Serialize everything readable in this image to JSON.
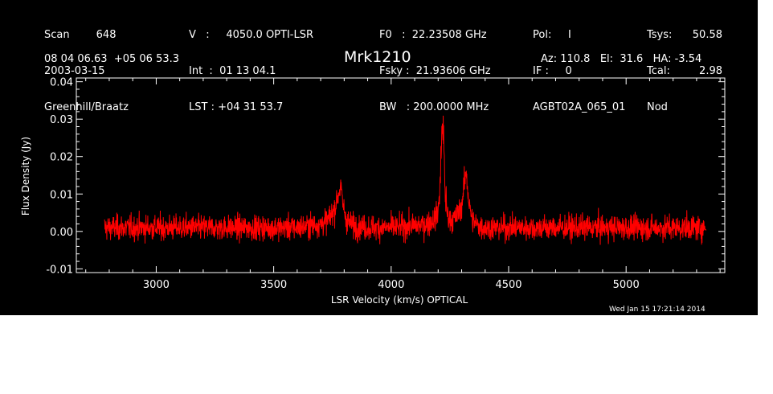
{
  "header": {
    "col1": [
      "Scan        648",
      "2003-03-15",
      "Greenhill/Braatz"
    ],
    "col2": [
      "V   :     4050.0 OPTI-LSR",
      "Int  :  01 13 04.1",
      "LST : +04 31 53.7"
    ],
    "col3": [
      "F0   :  22.23508 GHz",
      "Fsky :  21.93606 GHz",
      "BW   : 200.0000 MHz"
    ],
    "col4": [
      "Pol:     I",
      "IF :     0",
      "AGBT02A_065_01"
    ],
    "col5": [
      "Tsys:",
      "Tcal:",
      "Nod"
    ],
    "col6": [
      "50.58",
      "2.98",
      ""
    ],
    "coords": "08 04 06.63  +05 06 53.3",
    "source": "Mrk1210",
    "pointing": "Az: 110.8   El:  31.6   HA: -3.54"
  },
  "footer": {
    "timestamp": "Wed Jan 15 17:21:14 2014"
  },
  "colors": {
    "background": "#000000",
    "axes": "#ffffff",
    "trace": "#ff0000"
  },
  "chart_data": {
    "type": "line",
    "title": "Mrk1210",
    "xlabel": "LSR Velocity (km/s) OPTICAL",
    "ylabel": "Flux Density (Jy)",
    "xlim": [
      2660,
      5420
    ],
    "ylim": [
      -0.011,
      0.041
    ],
    "xticks": [
      3000,
      3500,
      4000,
      4500,
      5000
    ],
    "yticks": [
      -0.01,
      0.0,
      0.01,
      0.02,
      0.03,
      0.04
    ],
    "ytick_labels": [
      "-0.01",
      "0.00",
      "0.01",
      "0.02",
      "0.03",
      "0.04"
    ],
    "grid": false,
    "noise_rms": 0.0033,
    "series": [
      {
        "x": [
          2780,
          2900,
          3000,
          3100,
          3200,
          3300,
          3400,
          3500,
          3600,
          3650,
          3700,
          3730,
          3760,
          3775,
          3785,
          3795,
          3810,
          3840,
          3900,
          4000,
          4100,
          4150,
          4180,
          4200,
          4210,
          4215,
          4220,
          4225,
          4230,
          4240,
          4260,
          4280,
          4300,
          4310,
          4320,
          4330,
          4345,
          4370,
          4400,
          4500,
          4600,
          4700,
          4800,
          4900,
          5000,
          5100,
          5200,
          5300,
          5340
        ],
        "y": [
          0.001,
          0.001,
          0.001,
          0.001,
          0.001,
          0.001,
          0.001,
          0.001,
          0.001,
          0.0015,
          0.002,
          0.003,
          0.006,
          0.01,
          0.012,
          0.007,
          0.003,
          0.0015,
          0.001,
          0.001,
          0.0015,
          0.002,
          0.003,
          0.005,
          0.015,
          0.026,
          0.029,
          0.021,
          0.01,
          0.004,
          0.003,
          0.004,
          0.007,
          0.012,
          0.016,
          0.008,
          0.003,
          0.0015,
          0.001,
          0.001,
          0.001,
          0.001,
          0.001,
          0.001,
          0.001,
          0.001,
          0.001,
          0.001,
          0.001
        ]
      }
    ]
  }
}
